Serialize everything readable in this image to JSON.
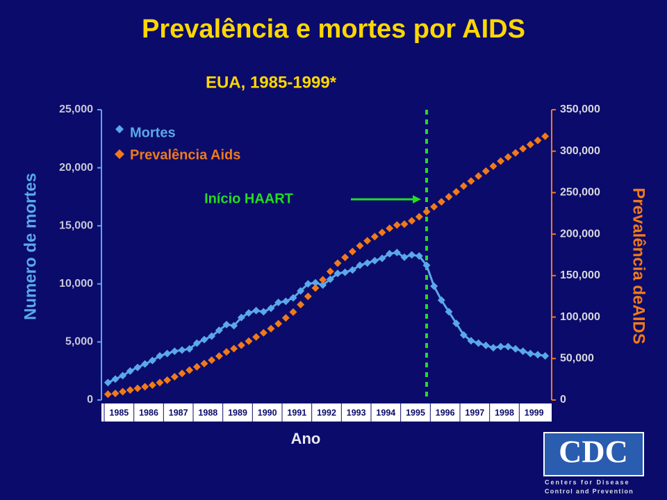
{
  "chart_data": {
    "type": "line",
    "title": "Prevalência e mortes por AIDS",
    "subtitle": "EUA, 1985-1999*",
    "x_label": "Ano",
    "y_label": "Numero de mortes",
    "y2_label": "Prevalência deAIDS",
    "annotation": "Início HAART",
    "categories": [
      "1985",
      null,
      null,
      null,
      "1986",
      null,
      null,
      null,
      "1987",
      null,
      null,
      null,
      "1988",
      null,
      null,
      null,
      "1989",
      null,
      null,
      null,
      "1990",
      null,
      null,
      null,
      "1991",
      null,
      null,
      null,
      "1992",
      null,
      null,
      null,
      "1993",
      null,
      null,
      null,
      "1994",
      null,
      null,
      null,
      "1995",
      null,
      null,
      null,
      "1996",
      null,
      null,
      null,
      "1997",
      null,
      null,
      null,
      "1998",
      null,
      null,
      null,
      "1999",
      null,
      null,
      null
    ],
    "ylim": [
      0,
      25000
    ],
    "yticks": [
      0,
      {
        "value": 5000,
        "label": "5,000"
      },
      {
        "value": 10000,
        "label": "10,000"
      },
      {
        "value": 15000,
        "label": "15,000"
      },
      {
        "value": 20000,
        "label": "20,000"
      },
      {
        "value": 25000,
        "label": "25,000"
      }
    ],
    "y2lim": [
      0,
      350000
    ],
    "y2ticks": [
      0,
      {
        "value": 50000,
        "label": "50,000"
      },
      {
        "value": 100000,
        "label": "100,000"
      },
      {
        "value": 150000,
        "label": "150,000"
      },
      {
        "value": 200000,
        "label": "200,000"
      },
      {
        "value": 250000,
        "label": "250,000"
      },
      {
        "value": 300000,
        "label": "300,000"
      },
      {
        "value": 350000,
        "label": "350,000"
      }
    ],
    "series": [
      {
        "name": "Mortes",
        "color": "#5aa8ea",
        "values": [
          1500,
          1800,
          2100,
          2500,
          2800,
          3100,
          3400,
          3800,
          4000,
          4200,
          4300,
          4400,
          4900,
          5200,
          5500,
          6000,
          6500,
          6400,
          7100,
          7500,
          7700,
          7600,
          7900,
          8400,
          8500,
          8800,
          9400,
          10000,
          10100,
          9900,
          10400,
          10900,
          11000,
          11200,
          11600,
          11800,
          12000,
          12200,
          12600,
          12700,
          12300,
          12500,
          12400,
          11600,
          9800,
          8600,
          7600,
          6600,
          5600,
          5100,
          4900,
          4700,
          4500,
          4600,
          4600,
          4400,
          4200,
          4000,
          3900,
          3800
        ]
      },
      {
        "name": "Prevalência Aids",
        "color": "#f07a1a",
        "axis": "y2",
        "values": [
          7000,
          8000,
          10000,
          12000,
          14000,
          16000,
          18000,
          21000,
          24000,
          28000,
          32000,
          36000,
          40000,
          44000,
          48000,
          53000,
          58000,
          62000,
          66000,
          71000,
          76000,
          81000,
          86000,
          92000,
          99000,
          106000,
          115000,
          125000,
          135000,
          145000,
          155000,
          165000,
          172000,
          179000,
          186000,
          192000,
          197000,
          202000,
          207000,
          211000,
          212000,
          216000,
          221000,
          227000,
          233000,
          239000,
          245000,
          251000,
          258000,
          264000,
          270000,
          276000,
          282000,
          288000,
          293000,
          298000,
          303000,
          308000,
          313000,
          318000
        ]
      }
    ],
    "logo": {
      "name": "CDC",
      "line1": "Centers for Disease",
      "line2": "Control and Prevention"
    }
  }
}
